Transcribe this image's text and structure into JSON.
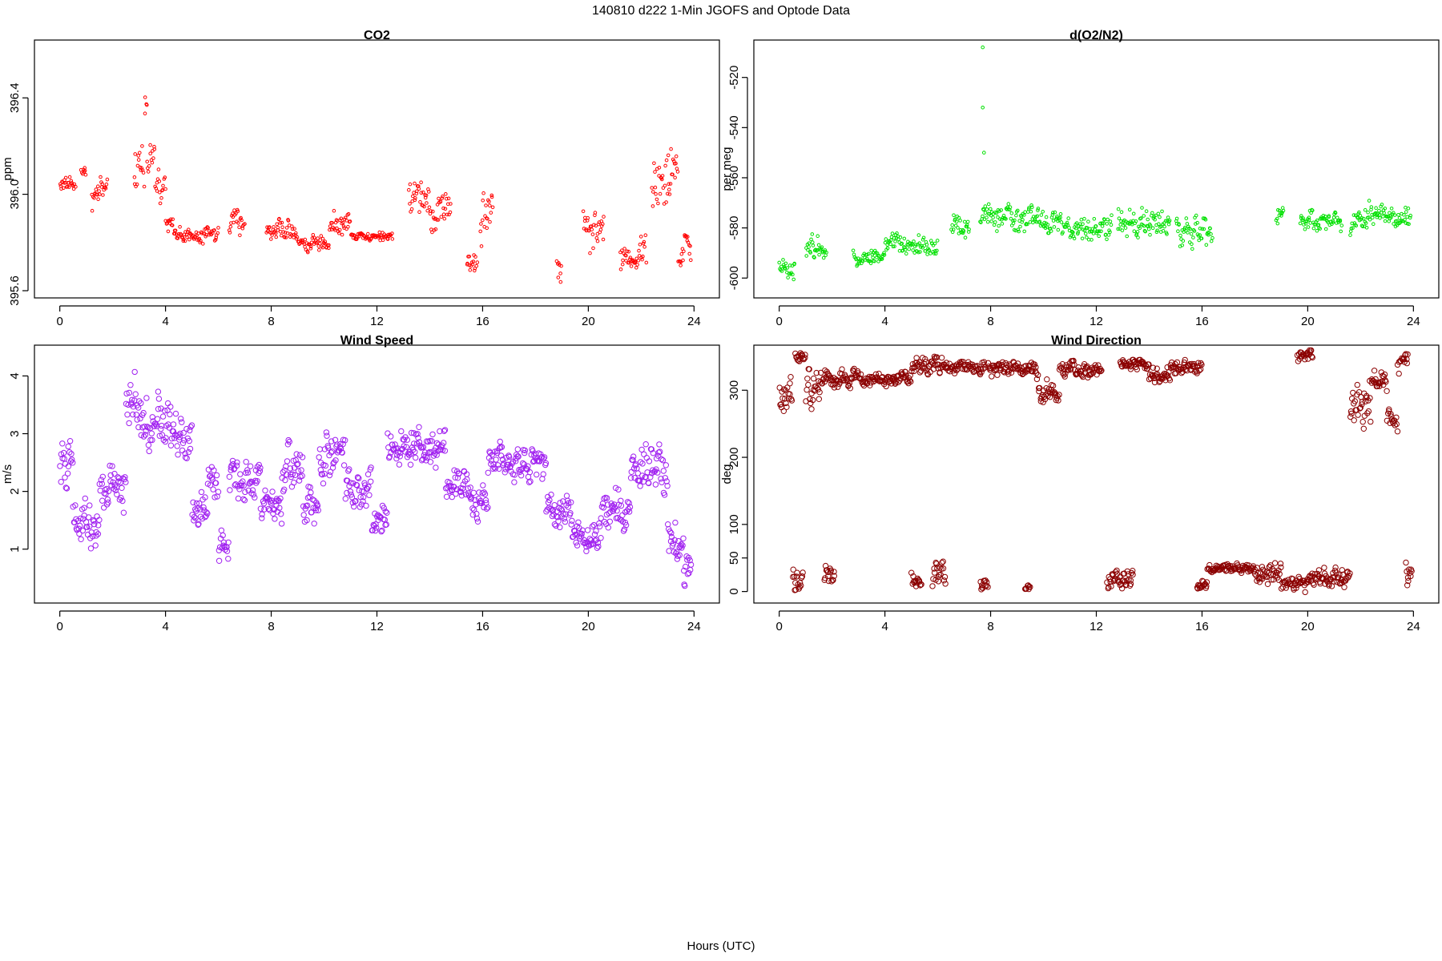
{
  "figure": {
    "title": "140810    d222   1-Min  JGOFS and Optode Data",
    "xlabel": "Hours (UTC)"
  },
  "chart_data": [
    {
      "type": "scatter",
      "title": "CO2",
      "xlabel": "",
      "ylabel": "ppm",
      "xlim": [
        0,
        24
      ],
      "ylim": [
        395.59,
        396.62
      ],
      "xticks": [
        0,
        4,
        8,
        12,
        16,
        20,
        24
      ],
      "yticks": [
        395.6,
        396.0,
        396.4
      ],
      "ytick_labels": [
        "395.6",
        "396.0",
        "396.4"
      ],
      "color": "#ff0000",
      "marker_radius": 1.8,
      "segments": [
        {
          "x0": 0.0,
          "x1": 0.6,
          "y": 396.04,
          "spread": 0.03
        },
        {
          "x0": 0.8,
          "x1": 1.0,
          "y": 396.1,
          "spread": 0.03
        },
        {
          "x0": 1.2,
          "x1": 1.8,
          "y": 396.0,
          "spread": 0.06
        },
        {
          "x0": 2.8,
          "x1": 3.2,
          "y": 396.1,
          "spread": 0.1
        },
        {
          "x0": 3.2,
          "x1": 3.3,
          "y": 396.38,
          "spread": 0.12
        },
        {
          "x0": 3.3,
          "x1": 3.6,
          "y": 396.15,
          "spread": 0.08
        },
        {
          "x0": 3.6,
          "x1": 4.0,
          "y": 396.05,
          "spread": 0.06
        },
        {
          "x0": 4.0,
          "x1": 4.3,
          "y": 395.9,
          "spread": 0.05
        },
        {
          "x0": 4.3,
          "x1": 6.0,
          "y": 395.83,
          "spread": 0.03
        },
        {
          "x0": 6.4,
          "x1": 7.0,
          "y": 395.88,
          "spread": 0.06
        },
        {
          "x0": 7.8,
          "x1": 9.0,
          "y": 395.85,
          "spread": 0.04
        },
        {
          "x0": 9.0,
          "x1": 10.2,
          "y": 395.8,
          "spread": 0.03
        },
        {
          "x0": 10.2,
          "x1": 11.0,
          "y": 395.88,
          "spread": 0.04
        },
        {
          "x0": 11.0,
          "x1": 12.6,
          "y": 395.83,
          "spread": 0.02
        },
        {
          "x0": 13.2,
          "x1": 14.0,
          "y": 396.0,
          "spread": 0.08
        },
        {
          "x0": 14.0,
          "x1": 14.8,
          "y": 395.95,
          "spread": 0.08
        },
        {
          "x0": 15.4,
          "x1": 15.8,
          "y": 395.72,
          "spread": 0.05
        },
        {
          "x0": 15.9,
          "x1": 16.4,
          "y": 395.9,
          "spread": 0.12
        },
        {
          "x0": 18.8,
          "x1": 19.0,
          "y": 395.7,
          "spread": 0.06
        },
        {
          "x0": 19.8,
          "x1": 20.6,
          "y": 395.85,
          "spread": 0.08
        },
        {
          "x0": 21.2,
          "x1": 22.2,
          "y": 395.75,
          "spread": 0.06
        },
        {
          "x0": 22.4,
          "x1": 23.4,
          "y": 396.05,
          "spread": 0.12
        },
        {
          "x0": 23.4,
          "x1": 23.9,
          "y": 395.75,
          "spread": 0.08
        }
      ]
    },
    {
      "type": "scatter",
      "title": "d(O2/N2)",
      "xlabel": "",
      "ylabel": "per meg",
      "xlim": [
        0,
        24
      ],
      "ylim": [
        -606,
        -507
      ],
      "xticks": [
        0,
        4,
        8,
        12,
        16,
        20,
        24
      ],
      "yticks": [
        -600,
        -580,
        -560,
        -540,
        -520
      ],
      "ytick_labels": [
        "-600",
        "-580",
        "-560",
        "-540",
        "-520"
      ],
      "color": "#00e000",
      "marker_radius": 1.8,
      "segments": [
        {
          "x0": 0.0,
          "x1": 0.6,
          "y": -596,
          "spread": 4
        },
        {
          "x0": 1.0,
          "x1": 1.8,
          "y": -588,
          "spread": 5
        },
        {
          "x0": 2.8,
          "x1": 4.0,
          "y": -591,
          "spread": 3
        },
        {
          "x0": 4.0,
          "x1": 6.0,
          "y": -586,
          "spread": 4
        },
        {
          "x0": 6.5,
          "x1": 7.2,
          "y": -579,
          "spread": 5
        },
        {
          "x0": 7.6,
          "x1": 10.0,
          "y": -576,
          "spread": 5
        },
        {
          "x0": 10.0,
          "x1": 12.6,
          "y": -580,
          "spread": 5
        },
        {
          "x0": 12.8,
          "x1": 14.8,
          "y": -578,
          "spread": 5
        },
        {
          "x0": 15.0,
          "x1": 16.4,
          "y": -580,
          "spread": 6
        },
        {
          "x0": 18.8,
          "x1": 19.1,
          "y": -574,
          "spread": 4
        },
        {
          "x0": 19.7,
          "x1": 21.3,
          "y": -577,
          "spread": 4
        },
        {
          "x0": 21.6,
          "x1": 22.1,
          "y": -580,
          "spread": 4
        },
        {
          "x0": 22.1,
          "x1": 23.9,
          "y": -574,
          "spread": 5
        }
      ],
      "extra_points": [
        [
          7.7,
          -508
        ],
        [
          7.7,
          -532
        ],
        [
          7.75,
          -550
        ]
      ]
    },
    {
      "type": "scatter",
      "title": "Wind Speed",
      "xlabel": "",
      "ylabel": "m/s",
      "xlim": [
        0,
        24
      ],
      "ylim": [
        0.15,
        4.45
      ],
      "xticks": [
        0,
        4,
        8,
        12,
        16,
        20,
        24
      ],
      "yticks": [
        1,
        2,
        3,
        4
      ],
      "ytick_labels": [
        "1",
        "2",
        "3",
        "4"
      ],
      "color": "#a020f0",
      "marker_radius": 3.2,
      "segments": [
        {
          "x0": 0.0,
          "x1": 0.5,
          "y": 2.4,
          "spread": 0.4
        },
        {
          "x0": 0.5,
          "x1": 1.5,
          "y": 1.5,
          "spread": 0.4
        },
        {
          "x0": 1.5,
          "x1": 2.5,
          "y": 2.1,
          "spread": 0.4
        },
        {
          "x0": 2.5,
          "x1": 3.2,
          "y": 3.4,
          "spread": 0.45
        },
        {
          "x0": 3.2,
          "x1": 4.2,
          "y": 3.2,
          "spread": 0.5
        },
        {
          "x0": 4.2,
          "x1": 5.0,
          "y": 3.0,
          "spread": 0.4
        },
        {
          "x0": 5.0,
          "x1": 5.6,
          "y": 1.7,
          "spread": 0.3
        },
        {
          "x0": 5.6,
          "x1": 6.0,
          "y": 2.2,
          "spread": 0.3
        },
        {
          "x0": 6.0,
          "x1": 6.4,
          "y": 1.0,
          "spread": 0.25
        },
        {
          "x0": 6.4,
          "x1": 7.6,
          "y": 2.2,
          "spread": 0.35
        },
        {
          "x0": 7.6,
          "x1": 8.4,
          "y": 1.7,
          "spread": 0.3
        },
        {
          "x0": 8.4,
          "x1": 9.2,
          "y": 2.3,
          "spread": 0.35
        },
        {
          "x0": 9.2,
          "x1": 9.8,
          "y": 1.8,
          "spread": 0.3
        },
        {
          "x0": 9.8,
          "x1": 10.8,
          "y": 2.6,
          "spread": 0.35
        },
        {
          "x0": 10.8,
          "x1": 11.8,
          "y": 2.1,
          "spread": 0.3
        },
        {
          "x0": 11.8,
          "x1": 12.4,
          "y": 1.5,
          "spread": 0.3
        },
        {
          "x0": 12.4,
          "x1": 14.6,
          "y": 2.8,
          "spread": 0.3
        },
        {
          "x0": 14.6,
          "x1": 15.6,
          "y": 2.1,
          "spread": 0.3
        },
        {
          "x0": 15.6,
          "x1": 16.2,
          "y": 1.8,
          "spread": 0.3
        },
        {
          "x0": 16.2,
          "x1": 18.4,
          "y": 2.5,
          "spread": 0.3
        },
        {
          "x0": 18.4,
          "x1": 19.4,
          "y": 1.6,
          "spread": 0.3
        },
        {
          "x0": 19.4,
          "x1": 20.4,
          "y": 1.2,
          "spread": 0.25
        },
        {
          "x0": 20.4,
          "x1": 21.6,
          "y": 1.6,
          "spread": 0.35
        },
        {
          "x0": 21.6,
          "x1": 23.0,
          "y": 2.4,
          "spread": 0.35
        },
        {
          "x0": 23.0,
          "x1": 23.6,
          "y": 1.2,
          "spread": 0.3
        },
        {
          "x0": 23.6,
          "x1": 23.9,
          "y": 0.7,
          "spread": 0.3
        }
      ]
    },
    {
      "type": "scatter",
      "title": "Wind Direction",
      "xlabel": "",
      "ylabel": "deg",
      "xlim": [
        0,
        24
      ],
      "ylim": [
        -10,
        360
      ],
      "xticks": [
        0,
        4,
        8,
        12,
        16,
        20,
        24
      ],
      "yticks": [
        0,
        50,
        100,
        200,
        300
      ],
      "ytick_labels": [
        "0",
        "50",
        "100",
        "200",
        "300"
      ],
      "color": "#8b0000",
      "marker_radius": 3.2,
      "segments": [
        {
          "x0": 0.0,
          "x1": 0.5,
          "y": 290,
          "spread": 25
        },
        {
          "x0": 0.5,
          "x1": 0.9,
          "y": 18,
          "spread": 18
        },
        {
          "x0": 0.6,
          "x1": 1.0,
          "y": 350,
          "spread": 8
        },
        {
          "x0": 1.0,
          "x1": 1.6,
          "y": 300,
          "spread": 30
        },
        {
          "x0": 1.6,
          "x1": 3.0,
          "y": 320,
          "spread": 12
        },
        {
          "x0": 1.7,
          "x1": 2.1,
          "y": 25,
          "spread": 20
        },
        {
          "x0": 3.0,
          "x1": 5.0,
          "y": 315,
          "spread": 8
        },
        {
          "x0": 5.0,
          "x1": 6.2,
          "y": 335,
          "spread": 12
        },
        {
          "x0": 5.0,
          "x1": 5.4,
          "y": 15,
          "spread": 15
        },
        {
          "x0": 5.8,
          "x1": 6.3,
          "y": 25,
          "spread": 18
        },
        {
          "x0": 6.2,
          "x1": 7.8,
          "y": 335,
          "spread": 10
        },
        {
          "x0": 7.6,
          "x1": 7.9,
          "y": 12,
          "spread": 12
        },
        {
          "x0": 7.9,
          "x1": 9.8,
          "y": 330,
          "spread": 10
        },
        {
          "x0": 9.3,
          "x1": 9.5,
          "y": 5,
          "spread": 4
        },
        {
          "x0": 9.8,
          "x1": 10.6,
          "y": 295,
          "spread": 15
        },
        {
          "x0": 10.6,
          "x1": 12.2,
          "y": 330,
          "spread": 10
        },
        {
          "x0": 12.4,
          "x1": 13.4,
          "y": 15,
          "spread": 15
        },
        {
          "x0": 12.9,
          "x1": 14.0,
          "y": 340,
          "spread": 8
        },
        {
          "x0": 14.0,
          "x1": 14.8,
          "y": 320,
          "spread": 12
        },
        {
          "x0": 14.8,
          "x1": 16.0,
          "y": 335,
          "spread": 10
        },
        {
          "x0": 15.8,
          "x1": 16.2,
          "y": 10,
          "spread": 6
        },
        {
          "x0": 16.2,
          "x1": 18.0,
          "y": 35,
          "spread": 6
        },
        {
          "x0": 18.0,
          "x1": 19.0,
          "y": 25,
          "spread": 15
        },
        {
          "x0": 19.0,
          "x1": 20.0,
          "y": 12,
          "spread": 10
        },
        {
          "x0": 19.6,
          "x1": 20.2,
          "y": 350,
          "spread": 8
        },
        {
          "x0": 20.0,
          "x1": 21.6,
          "y": 20,
          "spread": 15
        },
        {
          "x0": 21.6,
          "x1": 22.4,
          "y": 280,
          "spread": 35
        },
        {
          "x0": 22.4,
          "x1": 23.0,
          "y": 310,
          "spread": 15
        },
        {
          "x0": 23.0,
          "x1": 23.4,
          "y": 250,
          "spread": 15
        },
        {
          "x0": 23.4,
          "x1": 23.8,
          "y": 340,
          "spread": 12
        },
        {
          "x0": 23.7,
          "x1": 23.95,
          "y": 35,
          "spread": 25
        }
      ]
    }
  ]
}
